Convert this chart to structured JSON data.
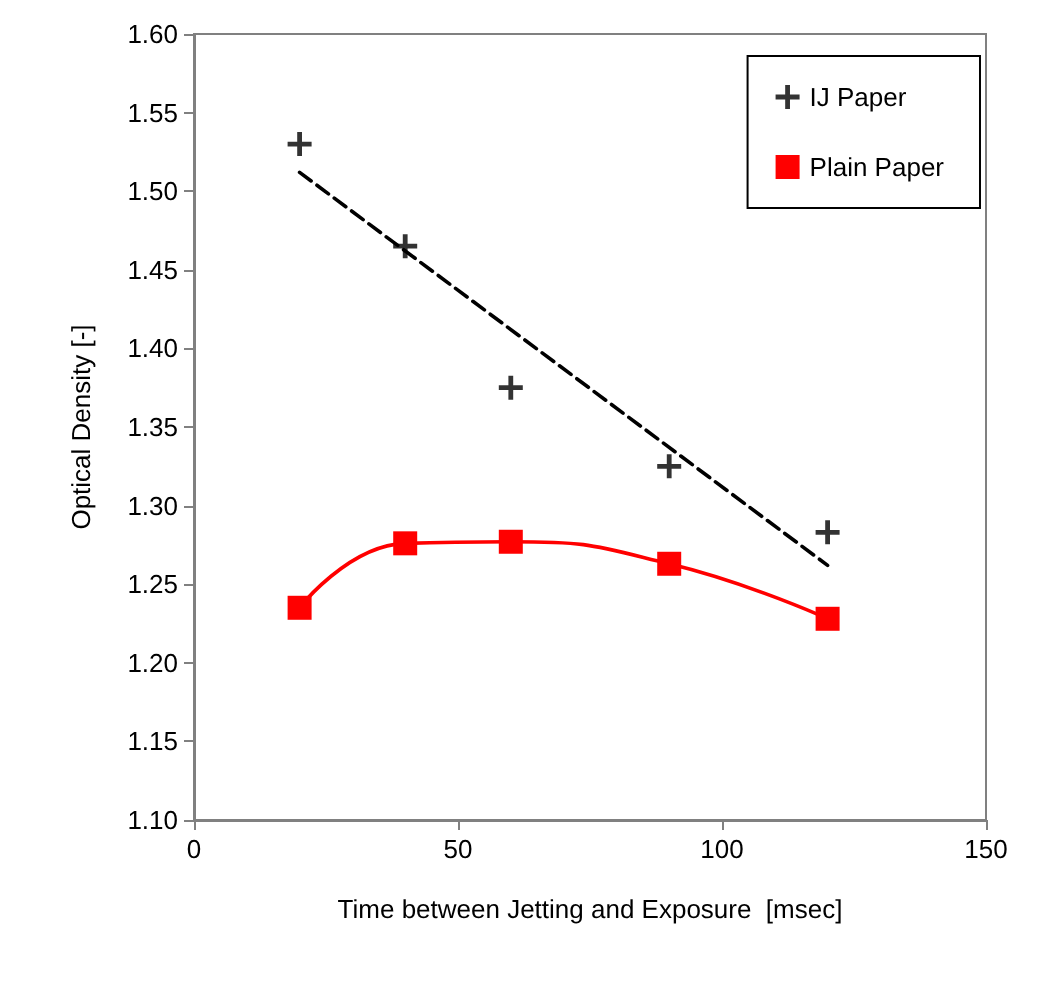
{
  "chart_data": {
    "type": "scatter",
    "xlabel": "Time between Jetting and Exposure  [msec]",
    "ylabel": "Optical Density [-]",
    "xlim": [
      0,
      150
    ],
    "xticks": [
      0,
      50,
      100,
      150
    ],
    "ylim": [
      1.1,
      1.6
    ],
    "yticks": [
      {
        "value": 1.1,
        "label": "1.10"
      },
      {
        "value": 1.15,
        "label": "1.15"
      },
      {
        "value": 1.2,
        "label": "1.20"
      },
      {
        "value": 1.25,
        "label": "1.25"
      },
      {
        "value": 1.3,
        "label": "1.30"
      },
      {
        "value": 1.35,
        "label": "1.35"
      },
      {
        "value": 1.4,
        "label": "1.40"
      },
      {
        "value": 1.45,
        "label": "1.45"
      },
      {
        "value": 1.5,
        "label": "1.50"
      },
      {
        "value": 1.55,
        "label": "1.55"
      },
      {
        "value": 1.6,
        "label": "1.60"
      }
    ],
    "x": [
      20,
      40,
      60,
      90,
      120
    ],
    "series": [
      {
        "name": "IJ Paper",
        "marker": "cross",
        "color": "#000000",
        "values": [
          1.53,
          1.465,
          1.375,
          1.325,
          1.283
        ]
      },
      {
        "name": "Plain Paper",
        "type": "line",
        "marker": "square",
        "color": "#ff0000",
        "values": [
          1.235,
          1.276,
          1.277,
          1.263,
          1.228
        ]
      },
      {
        "type": "line",
        "marker": "none",
        "line_style": "dashed",
        "color": "#000000",
        "x": [
          20,
          120
        ],
        "values": [
          1.512,
          1.262
        ]
      }
    ],
    "grid": false,
    "legend": "top right"
  }
}
